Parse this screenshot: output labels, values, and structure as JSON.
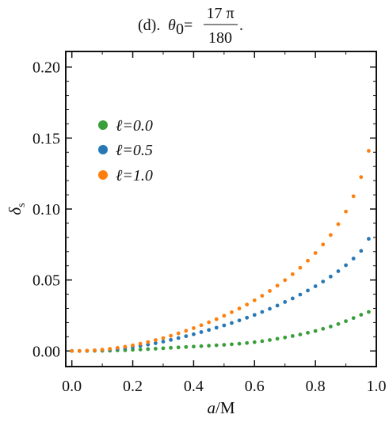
{
  "chart_data": {
    "type": "scatter",
    "title": {
      "prefix": "(d). ",
      "theta": "θ",
      "subscript": "0",
      "equals": "=",
      "numerator": "17 π",
      "denominator": "180",
      "suffix": "."
    },
    "xlabel": {
      "italic": "a",
      "rest": "/M"
    },
    "ylabel": {
      "main": "δ",
      "sub": "s"
    },
    "xlim": [
      -0.02,
      1.0
    ],
    "ylim": [
      -0.011,
      0.211
    ],
    "xticks": [
      0.0,
      0.2,
      0.4,
      0.6,
      0.8,
      1.0
    ],
    "xtick_labels": [
      "0.0",
      "0.2",
      "0.4",
      "0.6",
      "0.8",
      "1.0"
    ],
    "yticks": [
      0.0,
      0.05,
      0.1,
      0.15,
      0.2
    ],
    "ytick_labels": [
      "0.00",
      "0.05",
      "0.10",
      "0.15",
      "0.20"
    ],
    "grid": false,
    "legend_position": "upper-left",
    "x": [
      0.0,
      0.025,
      0.05,
      0.075,
      0.1,
      0.125,
      0.15,
      0.175,
      0.2,
      0.225,
      0.25,
      0.275,
      0.3,
      0.325,
      0.35,
      0.375,
      0.4,
      0.425,
      0.45,
      0.475,
      0.5,
      0.525,
      0.55,
      0.575,
      0.6,
      0.625,
      0.65,
      0.675,
      0.7,
      0.725,
      0.75,
      0.775,
      0.8,
      0.825,
      0.85,
      0.875,
      0.9,
      0.925,
      0.95,
      0.975
    ],
    "series": [
      {
        "name": "ℓ=0.0",
        "color": "#3a9e3a",
        "values": [
          0.0,
          0.0,
          0.0,
          0.0001,
          0.0001,
          0.0002,
          0.0004,
          0.0005,
          0.0008,
          0.001,
          0.0013,
          0.0016,
          0.0019,
          0.0022,
          0.0025,
          0.0028,
          0.0031,
          0.0034,
          0.0037,
          0.004,
          0.0043,
          0.0047,
          0.0051,
          0.0056,
          0.0062,
          0.0069,
          0.0077,
          0.0086,
          0.0095,
          0.0105,
          0.0116,
          0.0128,
          0.0141,
          0.0156,
          0.0172,
          0.019,
          0.021,
          0.0232,
          0.0255,
          0.0275
        ]
      },
      {
        "name": "ℓ=0.5",
        "color": "#2878b5",
        "values": [
          0.0,
          0.0,
          0.0001,
          0.0003,
          0.0006,
          0.001,
          0.0015,
          0.0021,
          0.0028,
          0.0036,
          0.0045,
          0.0055,
          0.0066,
          0.0078,
          0.0091,
          0.0104,
          0.0118,
          0.0133,
          0.0148,
          0.0164,
          0.018,
          0.0197,
          0.0215,
          0.0234,
          0.0254,
          0.0275,
          0.0297,
          0.032,
          0.0345,
          0.037,
          0.0397,
          0.0426,
          0.0456,
          0.0489,
          0.0524,
          0.0562,
          0.0604,
          0.0651,
          0.0705,
          0.079
        ]
      },
      {
        "name": "ℓ=1.0",
        "color": "#ff7f0e",
        "values": [
          0.0,
          0.0,
          0.0002,
          0.0005,
          0.0009,
          0.0015,
          0.0022,
          0.003,
          0.004,
          0.0051,
          0.0063,
          0.0077,
          0.0091,
          0.0107,
          0.0124,
          0.0142,
          0.0161,
          0.0181,
          0.0202,
          0.0224,
          0.0248,
          0.0273,
          0.0299,
          0.0327,
          0.0357,
          0.0389,
          0.0423,
          0.046,
          0.0499,
          0.0541,
          0.0586,
          0.0636,
          0.069,
          0.075,
          0.0817,
          0.0893,
          0.0982,
          0.109,
          0.1225,
          0.141
        ]
      }
    ]
  }
}
